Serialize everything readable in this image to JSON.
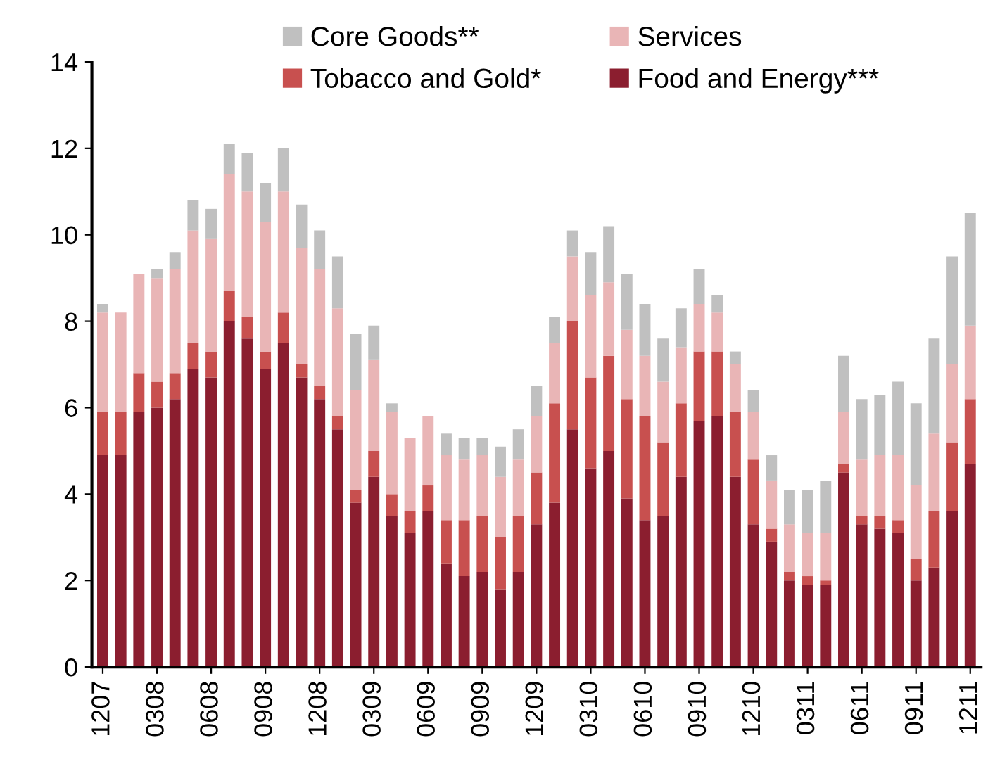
{
  "chart_data": {
    "type": "bar",
    "stacked": true,
    "categories": [
      "1207",
      null,
      null,
      "0308",
      null,
      null,
      "0608",
      null,
      null,
      "0908",
      null,
      null,
      "1208",
      null,
      null,
      "0309",
      null,
      null,
      "0609",
      null,
      null,
      "0909",
      null,
      null,
      "1209",
      null,
      null,
      "0310",
      null,
      null,
      "0610",
      null,
      null,
      "0910",
      null,
      null,
      "1210",
      null,
      null,
      "0311",
      null,
      null,
      "0611",
      null,
      null,
      "0911",
      null,
      null,
      "1211"
    ],
    "series": [
      {
        "name": "Food and Energy***",
        "color": "#8b1e2f",
        "values": [
          4.9,
          4.9,
          5.9,
          6.0,
          6.2,
          6.9,
          6.7,
          8.0,
          7.6,
          6.9,
          7.5,
          6.7,
          6.2,
          5.5,
          3.8,
          4.4,
          3.5,
          3.1,
          3.6,
          2.4,
          2.1,
          2.2,
          1.8,
          2.2,
          3.3,
          3.8,
          5.5,
          4.6,
          5.0,
          3.9,
          3.4,
          3.5,
          4.4,
          5.7,
          5.8,
          4.4,
          3.3,
          2.9,
          2.0,
          1.9,
          1.9,
          4.5,
          3.3,
          3.2,
          3.1,
          2.0,
          2.3,
          3.6,
          4.7
        ]
      },
      {
        "name": "Tobacco and Gold*",
        "color": "#c8504f",
        "values": [
          1.0,
          1.0,
          0.9,
          0.6,
          0.6,
          0.6,
          0.6,
          0.7,
          0.5,
          0.4,
          0.7,
          0.3,
          0.3,
          0.3,
          0.3,
          0.6,
          0.5,
          0.5,
          0.6,
          1.0,
          1.3,
          1.3,
          1.2,
          1.3,
          1.2,
          2.3,
          2.5,
          2.1,
          2.2,
          2.3,
          2.4,
          1.7,
          1.7,
          1.6,
          1.5,
          1.5,
          1.5,
          0.3,
          0.2,
          0.2,
          0.1,
          0.2,
          0.2,
          0.3,
          0.3,
          0.5,
          1.3,
          1.6,
          1.5
        ]
      },
      {
        "name": "Services",
        "color": "#e9b5b6",
        "values": [
          2.3,
          2.3,
          2.3,
          2.4,
          2.4,
          2.6,
          2.6,
          2.7,
          2.9,
          3.0,
          2.8,
          2.7,
          2.7,
          2.5,
          2.3,
          2.1,
          1.9,
          1.7,
          1.6,
          1.5,
          1.4,
          1.4,
          1.4,
          1.3,
          1.3,
          1.4,
          1.5,
          1.9,
          1.7,
          1.6,
          1.4,
          1.4,
          1.3,
          1.1,
          0.9,
          1.1,
          1.1,
          1.1,
          1.1,
          1.0,
          1.1,
          1.2,
          1.3,
          1.4,
          1.5,
          1.7,
          1.8,
          1.8,
          1.7
        ]
      },
      {
        "name": "Core Goods**",
        "color": "#c0c0c0",
        "values": [
          0.2,
          0.0,
          0.0,
          0.2,
          0.4,
          0.7,
          0.7,
          0.7,
          0.9,
          0.9,
          1.0,
          1.0,
          0.9,
          1.2,
          1.3,
          0.8,
          0.2,
          0.0,
          0.0,
          0.5,
          0.5,
          0.4,
          0.7,
          0.7,
          0.7,
          0.6,
          0.6,
          1.0,
          1.3,
          1.3,
          1.2,
          1.0,
          0.9,
          0.8,
          0.4,
          0.3,
          0.5,
          0.6,
          0.8,
          1.0,
          1.2,
          1.3,
          1.4,
          1.4,
          1.7,
          1.9,
          2.2,
          2.5,
          2.6
        ]
      }
    ],
    "ylim": [
      0,
      14
    ],
    "yticks": [
      0,
      2,
      4,
      6,
      8,
      10,
      12,
      14
    ],
    "grid": false,
    "legend": "top"
  }
}
